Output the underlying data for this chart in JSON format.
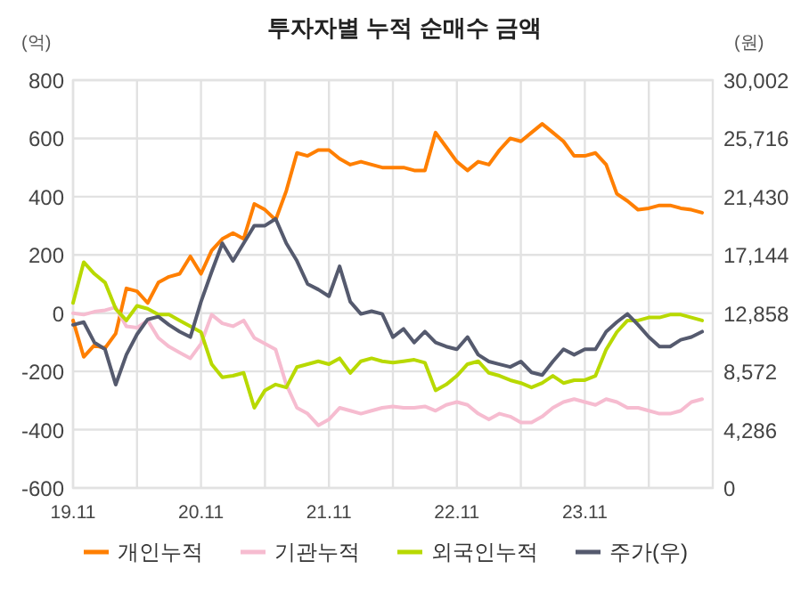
{
  "chart_data": {
    "type": "line",
    "title": "투자자별 누적 순매수 금액",
    "ylabel": "(억)",
    "y2label": "(원)",
    "categories": [
      "19.11",
      null,
      null,
      null,
      null,
      null,
      null,
      null,
      null,
      null,
      null,
      null,
      "20.11",
      null,
      null,
      null,
      null,
      null,
      null,
      null,
      null,
      null,
      null,
      null,
      "21.11",
      null,
      null,
      null,
      null,
      null,
      null,
      null,
      null,
      null,
      null,
      null,
      "22.11",
      null,
      null,
      null,
      null,
      null,
      null,
      null,
      null,
      null,
      null,
      null,
      "23.11",
      null,
      null,
      null,
      null,
      null,
      null,
      null,
      null,
      null,
      null,
      null
    ],
    "series": [
      {
        "name": "개인누적",
        "color": "#ff7f00",
        "values": [
          -25,
          -150,
          -110,
          -120,
          -70,
          85,
          75,
          35,
          105,
          125,
          135,
          195,
          135,
          215,
          255,
          275,
          255,
          375,
          355,
          320,
          420,
          550,
          540,
          560,
          560,
          530,
          510,
          520,
          510,
          500,
          500,
          500,
          490,
          490,
          620,
          570,
          520,
          490,
          520,
          510,
          560,
          600,
          590,
          620,
          650,
          620,
          590,
          540,
          540,
          550,
          510,
          410,
          385,
          355,
          360,
          370,
          370,
          360,
          355,
          345
        ]
      },
      {
        "name": "기관누적",
        "color": "#f6bcd0",
        "values": [
          0,
          -5,
          5,
          10,
          20,
          -45,
          -50,
          -25,
          -85,
          -115,
          -135,
          -155,
          -105,
          -5,
          -35,
          -45,
          -25,
          -85,
          -105,
          -125,
          -245,
          -325,
          -345,
          -385,
          -365,
          -325,
          -335,
          -345,
          -335,
          -325,
          -320,
          -325,
          -325,
          -320,
          -335,
          -315,
          -305,
          -315,
          -345,
          -365,
          -345,
          -355,
          -375,
          -375,
          -355,
          -325,
          -305,
          -295,
          -305,
          -315,
          -295,
          -305,
          -325,
          -325,
          -335,
          -345,
          -345,
          -335,
          -305,
          -295
        ]
      },
      {
        "name": "외국인누적",
        "color": "#b8d900",
        "values": [
          35,
          175,
          135,
          105,
          15,
          -25,
          25,
          15,
          -5,
          -5,
          -25,
          -45,
          -65,
          -175,
          -220,
          -215,
          -205,
          -325,
          -265,
          -245,
          -255,
          -185,
          -175,
          -165,
          -175,
          -155,
          -205,
          -165,
          -155,
          -165,
          -170,
          -165,
          -160,
          -170,
          -265,
          -245,
          -215,
          -175,
          -165,
          -205,
          -215,
          -230,
          -240,
          -255,
          -240,
          -215,
          -240,
          -230,
          -230,
          -215,
          -125,
          -65,
          -25,
          -25,
          -15,
          -15,
          -5,
          -5,
          -15,
          -25
        ]
      },
      {
        "name": "주가(우)",
        "color": "#555a6e",
        "axis": "y2",
        "values": [
          12000,
          12200,
          10700,
          10200,
          7600,
          9800,
          11300,
          12400,
          12600,
          12000,
          11500,
          11100,
          13700,
          15900,
          18000,
          16700,
          18000,
          19300,
          19300,
          19800,
          18000,
          16700,
          15000,
          14600,
          14100,
          16300,
          13700,
          12800,
          13000,
          12800,
          11100,
          11700,
          10700,
          11500,
          10700,
          10400,
          10200,
          11100,
          9800,
          9300,
          9100,
          8900,
          9300,
          8500,
          8300,
          9300,
          10200,
          9800,
          10200,
          10200,
          11500,
          12200,
          12800,
          12000,
          11100,
          10400,
          10400,
          10900,
          11100,
          11500
        ]
      }
    ],
    "ylim": [
      -600,
      800
    ],
    "yticks": [
      -600,
      -400,
      -200,
      0,
      200,
      400,
      600,
      800
    ],
    "y2lim": [
      0,
      30002
    ],
    "y2ticks": [
      {
        "value": 0,
        "label": "0"
      },
      {
        "value": 4286,
        "label": "4,286"
      },
      {
        "value": 8572,
        "label": "8,572"
      },
      {
        "value": 12858,
        "label": "12,858"
      },
      {
        "value": 17144,
        "label": "17,144"
      },
      {
        "value": 21430,
        "label": "21,430"
      },
      {
        "value": 25716,
        "label": "25,716"
      },
      {
        "value": 30002,
        "label": "30,002"
      }
    ],
    "grid": true,
    "legend": "bottom",
    "line_style": "solid",
    "marker": "none"
  }
}
